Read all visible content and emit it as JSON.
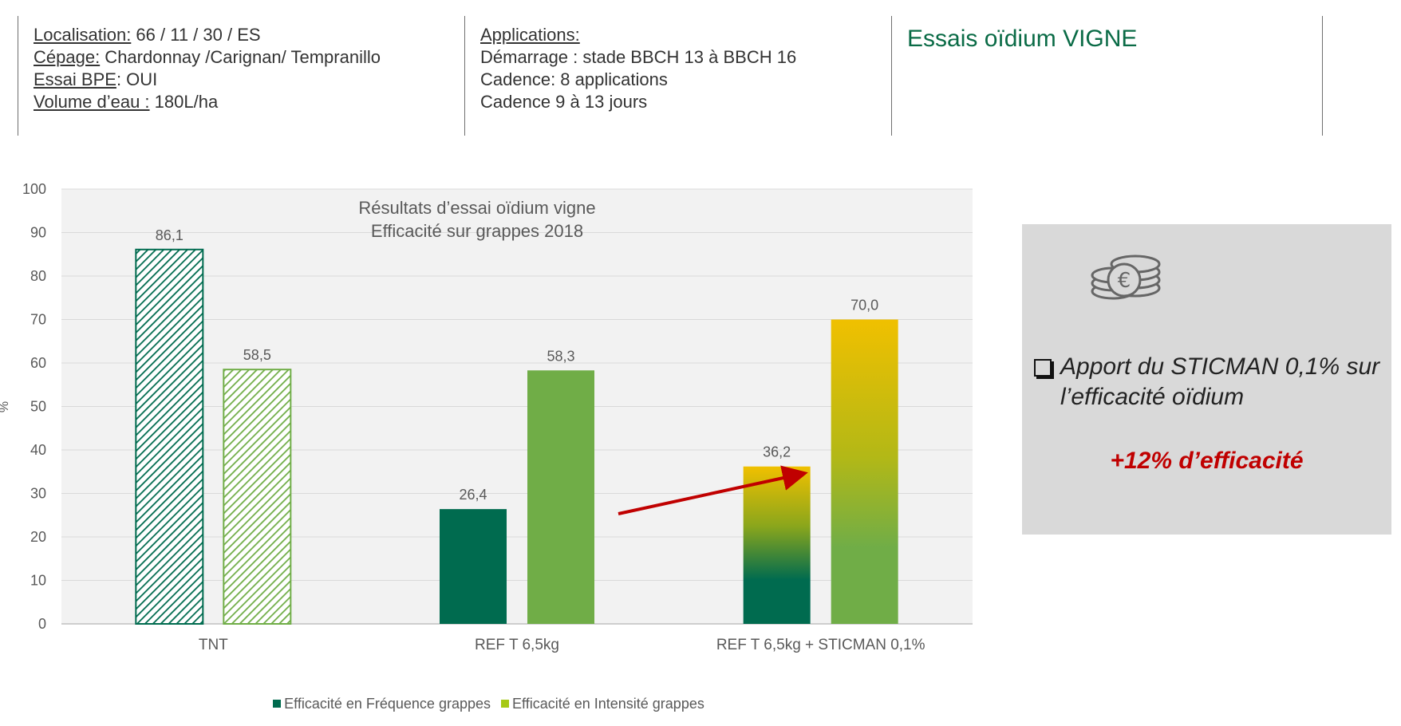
{
  "header": {
    "col1": {
      "rows": [
        {
          "label": "Localisation:",
          "value": " 66 / 11 / 30 / ES"
        },
        {
          "label": "Cépage:",
          "value": " Chardonnay /Carignan/ Tempranillo"
        },
        {
          "label": "Essai BPE",
          "value": ": OUI"
        },
        {
          "label": "Volume d’eau :",
          "value": " 180L/ha"
        }
      ]
    },
    "col2": {
      "title": "Applications:",
      "lines": [
        "Démarrage : stade BBCH 13 à BBCH 16",
        "Cadence: 8 applications",
        "Cadence 9 à 13 jours"
      ]
    },
    "title": "Essais oïdium VIGNE"
  },
  "chart_data": {
    "type": "bar",
    "title": "Résultats d’essai oïdium vigne",
    "subtitle": "Efficacité sur grappes 2018",
    "categories": [
      "TNT",
      "REF T 6,5kg",
      "REF T 6,5kg + STICMAN 0,1%"
    ],
    "series": [
      {
        "name": "Efficacité en Fréquence grappes",
        "values": [
          86.1,
          26.4,
          36.2
        ],
        "labels": [
          "86,1",
          "26,4",
          "36,2"
        ],
        "color": "#006b4f"
      },
      {
        "name": "Efficacité en Intensité grappes",
        "values": [
          58.5,
          58.3,
          70.0
        ],
        "labels": [
          "58,5",
          "58,3",
          "70,0"
        ],
        "color": "#70ad47"
      }
    ],
    "ylabel": "%",
    "ylim": [
      0,
      100
    ],
    "yticks": [
      "0",
      "10",
      "20",
      "30",
      "40",
      "50",
      "60",
      "70",
      "80",
      "90",
      "100"
    ],
    "grid": true,
    "legend_position": "bottom",
    "legend_colors": [
      "#006b4f",
      "#a6c915"
    ],
    "highlight_color": "#f0c000",
    "arrow_color": "#c00000"
  },
  "panel": {
    "icon": "coins-euro-icon",
    "bullet": [
      "Apport du STICMAN 0,1% sur",
      "l’efficacité oïdium"
    ],
    "highlight": "+12% d’efficacité"
  }
}
